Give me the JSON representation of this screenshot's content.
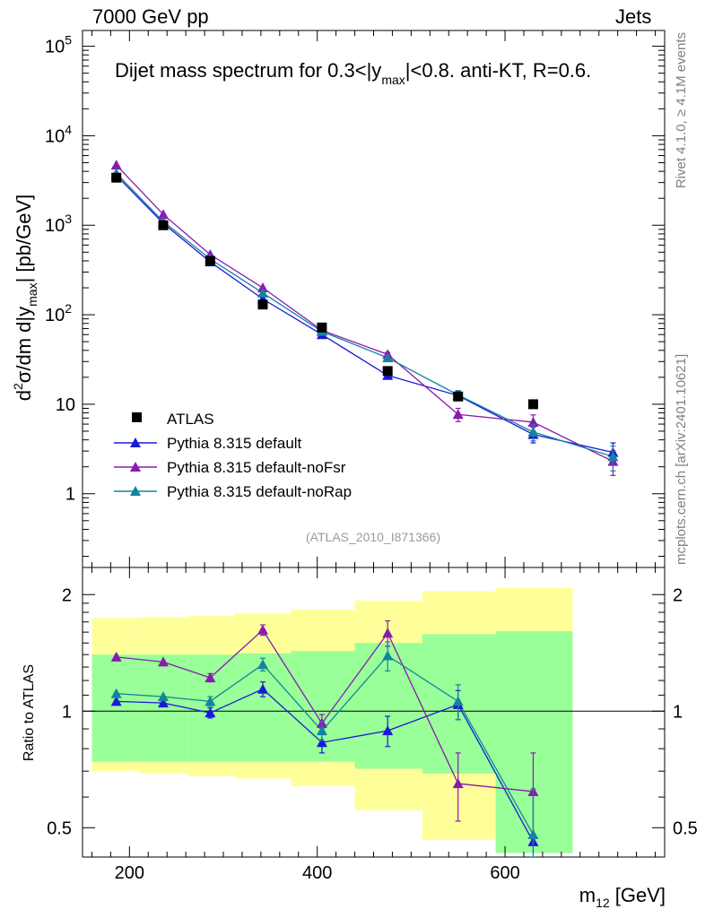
{
  "header": {
    "left": "7000 GeV pp",
    "right": "Jets",
    "side_top": "Rivet 4.1.0, ≥ 4.1M events",
    "side_bottom": "mcplots.cern.ch [arXiv:2401.10621]"
  },
  "chart_data": [
    {
      "type": "scatter",
      "panel": "main",
      "title": "Dijet mass spectrum for 0.3<|y_max|<0.8.  anti-KT, R=0.6.",
      "title_parts": {
        "pre": "Dijet mass spectrum for 0.3<|y",
        "sub": "max",
        "post": "|<0.8.  anti-KT, R=0.6."
      },
      "ylabel": "d²σ/dm d|y_max| [pb/GeV]",
      "ylabel_parts": {
        "a": "d",
        "sup": "2",
        "b": "σ/dm d|y",
        "sub": "max",
        "c": "| [pb/GeV]"
      },
      "yscale": "log",
      "xlim": [
        150,
        770
      ],
      "ylim": [
        0.15,
        150000
      ],
      "y_ticks": [
        {
          "v": 100000,
          "base": "10",
          "exp": "5"
        },
        {
          "v": 10000,
          "base": "10",
          "exp": "4"
        },
        {
          "v": 1000,
          "base": "10",
          "exp": "3"
        },
        {
          "v": 100,
          "base": "10",
          "exp": "2"
        },
        {
          "v": 10,
          "base": "10",
          "exp": ""
        },
        {
          "v": 1,
          "base": "1",
          "exp": ""
        }
      ],
      "annotation": "(ATLAS_2010_I871366)",
      "legend_position": "lower-left",
      "data": {
        "name": "ATLAS",
        "color": "#000000",
        "x": [
          186,
          236,
          286,
          342,
          405,
          475,
          550,
          630
        ],
        "y": [
          3400,
          1000,
          400,
          130,
          72,
          23.5,
          12.2,
          10.0
        ]
      },
      "series": [
        {
          "name": "Pythia 8.315 default",
          "color": "#1a1ad6",
          "x": [
            186,
            236,
            286,
            342,
            405,
            475,
            550,
            630,
            715
          ],
          "y": [
            3600,
            1050,
            390,
            150,
            60,
            21,
            12.5,
            4.6,
            2.9
          ],
          "err": [
            0,
            0,
            0,
            0,
            0,
            1.5,
            1.5,
            0.9,
            0.8
          ]
        },
        {
          "name": "Pythia 8.315 default-noFsr",
          "color": "#8a1ab0",
          "x": [
            186,
            236,
            286,
            342,
            405,
            475,
            550,
            630,
            715
          ],
          "y": [
            4700,
            1320,
            470,
            200,
            67,
            36,
            7.7,
            6.3,
            2.3
          ],
          "err": [
            0,
            0,
            0,
            0,
            0,
            2,
            1.3,
            1.3,
            0.7
          ]
        },
        {
          "name": "Pythia 8.315 default-noRap",
          "color": "#12849e",
          "x": [
            186,
            236,
            286,
            342,
            405,
            475,
            550,
            630,
            715
          ],
          "y": [
            3800,
            1100,
            420,
            175,
            65,
            33,
            12.7,
            4.9,
            2.6
          ],
          "err": [
            0,
            0,
            0,
            0,
            0,
            2,
            1.5,
            1.0,
            0.8
          ]
        }
      ]
    },
    {
      "type": "scatter",
      "panel": "ratio",
      "ylabel": "Ratio to ATLAS",
      "xlabel": "m_12 [GeV]",
      "xlabel_parts": {
        "a": "m",
        "sub": "12",
        "b": " [GeV]"
      },
      "yscale": "log",
      "xlim": [
        150,
        770
      ],
      "ylim": [
        0.42,
        2.35
      ],
      "x_ticks": [
        200,
        400,
        600
      ],
      "y_ticks": [
        0.5,
        1,
        2
      ],
      "reference_line": 1,
      "bands": {
        "outer_color": "#ffff99",
        "inner_color": "#99ff99",
        "bins": [
          {
            "x0": 160,
            "x1": 210,
            "outer": [
              0.7,
              1.74
            ],
            "inner": [
              0.74,
              1.4
            ]
          },
          {
            "x0": 210,
            "x1": 262,
            "outer": [
              0.69,
              1.75
            ],
            "inner": [
              0.74,
              1.4
            ]
          },
          {
            "x0": 262,
            "x1": 312,
            "outer": [
              0.68,
              1.76
            ],
            "inner": [
              0.74,
              1.4
            ]
          },
          {
            "x0": 312,
            "x1": 372,
            "outer": [
              0.67,
              1.79
            ],
            "inner": [
              0.74,
              1.41
            ]
          },
          {
            "x0": 372,
            "x1": 440,
            "outer": [
              0.64,
              1.83
            ],
            "inner": [
              0.74,
              1.43
            ]
          },
          {
            "x0": 440,
            "x1": 512,
            "outer": [
              0.555,
              1.93
            ],
            "inner": [
              0.71,
              1.5
            ]
          },
          {
            "x0": 512,
            "x1": 590,
            "outer": [
              0.465,
              2.04
            ],
            "inner": [
              0.69,
              1.58
            ]
          },
          {
            "x0": 590,
            "x1": 672,
            "outer": [
              0.43,
              2.08
            ],
            "inner": [
              0.43,
              1.61
            ]
          }
        ]
      },
      "series": [
        {
          "name": "Pythia 8.315 default",
          "color": "#1a1ad6",
          "x": [
            186,
            236,
            286,
            342,
            405,
            475,
            550,
            630
          ],
          "y": [
            1.06,
            1.05,
            0.99,
            1.14,
            0.83,
            0.89,
            1.04,
            0.46
          ],
          "err": [
            0,
            0,
            0.03,
            0.05,
            0.05,
            0.08,
            0.09,
            0.15
          ]
        },
        {
          "name": "Pythia 8.315 default-noFsr",
          "color": "#8a1ab0",
          "x": [
            186,
            236,
            286,
            342,
            405,
            475,
            550,
            630
          ],
          "y": [
            1.38,
            1.34,
            1.22,
            1.62,
            0.93,
            1.59,
            0.65,
            0.62
          ],
          "err": [
            0,
            0,
            0.03,
            0.05,
            0.05,
            0.12,
            0.13,
            0.16
          ]
        },
        {
          "name": "Pythia 8.315 default-noRap",
          "color": "#12849e",
          "x": [
            186,
            236,
            286,
            342,
            405,
            475,
            550,
            630
          ],
          "y": [
            1.11,
            1.09,
            1.06,
            1.32,
            0.89,
            1.39,
            1.06,
            0.48
          ],
          "err": [
            0,
            0,
            0.03,
            0.05,
            0.05,
            0.12,
            0.11,
            0.15
          ]
        }
      ]
    }
  ]
}
